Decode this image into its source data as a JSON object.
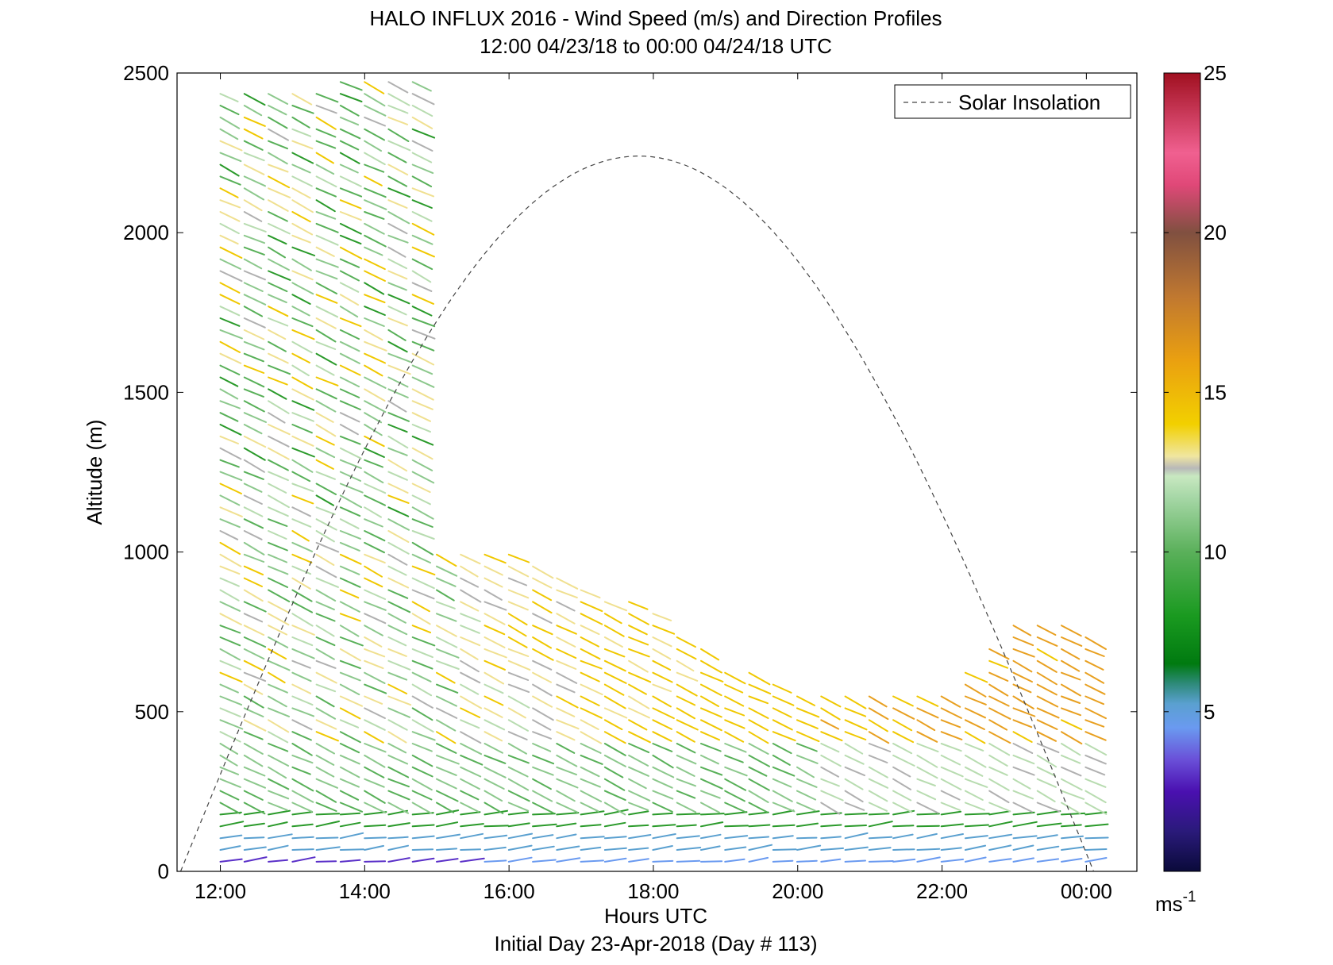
{
  "chart_data": {
    "type": "wind-barb-profile",
    "title": "HALO INFLUX 2016 - Wind Speed (m/s) and Direction Profiles",
    "subtitle": "12:00 04/23/18 to 00:00 04/24/18  UTC",
    "xlabel": "Hours UTC",
    "footer": "Initial Day 23-Apr-2018 (Day # 113)",
    "ylabel": "Altitude (m)",
    "x_ticks": [
      "12:00",
      "14:00",
      "16:00",
      "18:00",
      "20:00",
      "22:00",
      "00:00"
    ],
    "x_tick_hours": [
      12,
      14,
      16,
      18,
      20,
      22,
      24
    ],
    "xlim_hours": [
      11.4,
      24.7
    ],
    "y_ticks": [
      0,
      500,
      1000,
      1500,
      2000,
      2500
    ],
    "ylim": [
      0,
      2500
    ],
    "legend": {
      "label": "Solar Insolation",
      "placement": "top-right",
      "style": "dashed"
    },
    "colorbar": {
      "ticks": [
        5,
        10,
        15,
        20,
        25
      ],
      "range": [
        0,
        25
      ],
      "unit_main": "ms",
      "unit_sup": "-1"
    },
    "solar_curve": {
      "start_hour": 11.45,
      "peak_hour": 17.8,
      "peak_altitude": 2240,
      "end_hour": 24.1
    },
    "profiles": {
      "time_step_hours": 0.333,
      "gap_hours": [
        [
          15.0,
          15.3
        ]
      ],
      "low_level_max_height_by_hour": [
        {
          "hour": 12.0,
          "top": 1050
        },
        {
          "hour": 13.0,
          "top": 1020
        },
        {
          "hour": 14.0,
          "top": 1010
        },
        {
          "hour": 15.0,
          "top": 1000
        },
        {
          "hour": 16.0,
          "top": 1000
        },
        {
          "hour": 17.0,
          "top": 900
        },
        {
          "hour": 18.0,
          "top": 820
        },
        {
          "hour": 19.0,
          "top": 650
        },
        {
          "hour": 20.0,
          "top": 580
        },
        {
          "hour": 21.0,
          "top": 560
        },
        {
          "hour": 22.0,
          "top": 580
        },
        {
          "hour": 23.0,
          "top": 800
        },
        {
          "hour": 24.0,
          "top": 760
        }
      ],
      "upper_max_height_by_hour": [
        {
          "hour": 12.0,
          "top": 2460
        },
        {
          "hour": 13.0,
          "top": 2450
        },
        {
          "hour": 14.0,
          "top": 2500
        },
        {
          "hour": 14.9,
          "top": 2490
        }
      ]
    }
  }
}
